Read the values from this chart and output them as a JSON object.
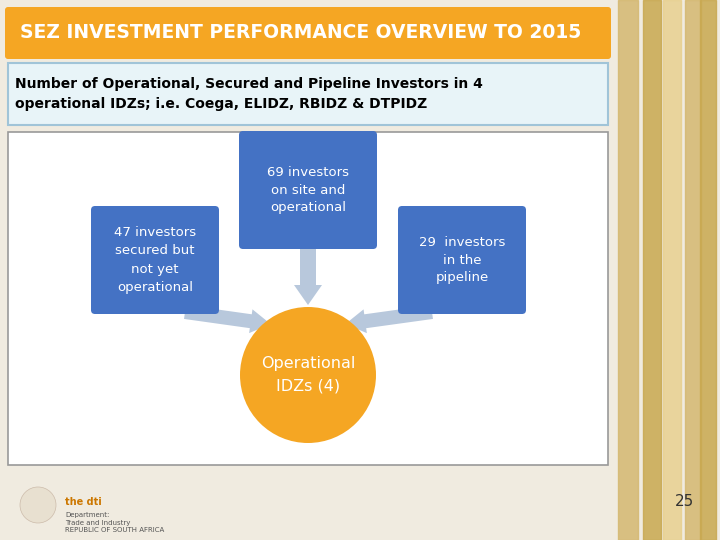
{
  "title": "SEZ INVESTMENT PERFORMANCE OVERVIEW TO 2015",
  "title_bg": "#F5A623",
  "title_color": "#FFFFFF",
  "subtitle": "Number of Operational, Secured and Pipeline Investors in 4\noperational IDZs; i.e. Coega, ELIDZ, RBIDZ & DTPIDZ",
  "subtitle_bg": "#E8F4F8",
  "subtitle_border": "#A0C4D8",
  "subtitle_color": "#000000",
  "slide_bg": "#F0EBE0",
  "box_color": "#4472C4",
  "circle_color": "#F5A623",
  "arrow_color": "#B8C8DC",
  "box_text_color": "#FFFFFF",
  "circle_text_color": "#FFFFFF",
  "box1_text": "47 investors\nsecured but\nnot yet\noperational",
  "box2_text": "69 investors\non site and\noperational",
  "box3_text": "29  investors\nin the\npipeline",
  "circle_text": "Operational\nIDZs (4)",
  "page_number": "25",
  "content_border": "#999999",
  "main_area_bg": "#FFFFFF",
  "stripe_colors": [
    "#D4B870",
    "#C0A040",
    "#E0CC90",
    "#CCAA50"
  ],
  "footer_text_color": "#555555"
}
